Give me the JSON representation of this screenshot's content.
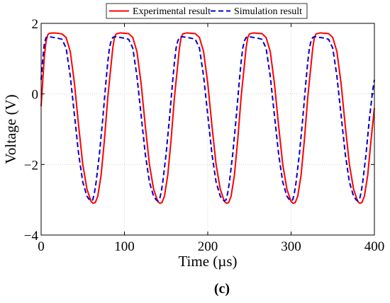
{
  "chart_data": {
    "type": "line",
    "xlabel": "Time (µs)",
    "ylabel": "Voltage (V)",
    "xlim": [
      0,
      400
    ],
    "ylim": [
      -4,
      2
    ],
    "xticks": [
      0,
      100,
      200,
      300,
      400
    ],
    "yticks": [
      -4,
      -2,
      0,
      2
    ],
    "grid": true,
    "legend_position": "top",
    "caption": "(c)",
    "series": [
      {
        "name": "Experimental result",
        "color": "#ff0000",
        "style": "solid",
        "x": [
          0,
          2,
          4,
          6,
          8,
          10,
          15,
          20,
          25,
          30,
          35,
          40,
          45,
          50,
          55,
          60,
          62.5,
          65,
          68,
          72,
          76,
          80,
          83,
          86,
          88,
          90,
          95,
          100,
          105,
          110,
          115,
          120,
          125,
          130,
          135,
          140,
          142.5,
          145,
          148,
          152,
          156,
          160,
          163,
          166,
          168,
          170,
          175,
          180,
          185,
          190,
          195,
          200,
          205,
          210,
          215,
          220,
          222.5,
          225,
          228,
          232,
          236,
          240,
          243,
          246,
          248,
          250,
          255,
          260,
          265,
          270,
          275,
          280,
          285,
          290,
          295,
          300,
          302.5,
          305,
          308,
          312,
          316,
          320,
          323,
          326,
          328,
          330,
          335,
          340,
          345,
          350,
          355,
          360,
          365,
          370,
          375,
          380,
          382.5,
          385,
          388,
          392,
          396,
          400
        ],
        "y": [
          -0.35,
          0.4,
          1.1,
          1.5,
          1.68,
          1.72,
          1.73,
          1.72,
          1.7,
          1.6,
          1.2,
          0.3,
          -0.9,
          -2.0,
          -2.7,
          -3.05,
          -3.1,
          -3.08,
          -2.9,
          -2.3,
          -1.3,
          -0.1,
          0.6,
          1.3,
          1.6,
          1.7,
          1.73,
          1.72,
          1.71,
          1.6,
          1.2,
          0.3,
          -0.9,
          -2.0,
          -2.7,
          -3.05,
          -3.1,
          -3.08,
          -2.9,
          -2.3,
          -1.3,
          -0.1,
          0.6,
          1.3,
          1.6,
          1.7,
          1.73,
          1.72,
          1.71,
          1.6,
          1.2,
          0.3,
          -0.9,
          -2.0,
          -2.7,
          -3.05,
          -3.1,
          -3.08,
          -2.9,
          -2.3,
          -1.3,
          -0.1,
          0.6,
          1.3,
          1.6,
          1.7,
          1.73,
          1.72,
          1.71,
          1.6,
          1.2,
          0.3,
          -0.9,
          -2.0,
          -2.7,
          -3.05,
          -3.1,
          -3.08,
          -2.9,
          -2.3,
          -1.3,
          -0.1,
          0.6,
          1.3,
          1.6,
          1.7,
          1.73,
          1.72,
          1.71,
          1.6,
          1.2,
          0.3,
          -0.9,
          -2.0,
          -2.7,
          -3.05,
          -3.1,
          -3.08,
          -2.9,
          -2.3,
          -1.3,
          -0.4
        ]
      },
      {
        "name": "Simulation result",
        "color": "#0000cc",
        "style": "dashed",
        "x": [
          0,
          2,
          4,
          6,
          8,
          10,
          15,
          20,
          25,
          30,
          35,
          40,
          45,
          50,
          55,
          58,
          60,
          62,
          64,
          66,
          70,
          74,
          78,
          80,
          82,
          84,
          86,
          88,
          90,
          95,
          100,
          105,
          110,
          115,
          120,
          125,
          130,
          135,
          138,
          140,
          142,
          144,
          146,
          150,
          154,
          158,
          160,
          162,
          164,
          166,
          168,
          170,
          175,
          180,
          185,
          190,
          195,
          200,
          205,
          210,
          215,
          218,
          220,
          222,
          224,
          226,
          230,
          234,
          238,
          240,
          242,
          244,
          246,
          248,
          250,
          255,
          260,
          265,
          270,
          275,
          280,
          285,
          290,
          295,
          298,
          300,
          302,
          304,
          306,
          310,
          314,
          318,
          320,
          322,
          324,
          326,
          328,
          330,
          335,
          340,
          345,
          350,
          355,
          360,
          365,
          370,
          375,
          378,
          380,
          382,
          384,
          386,
          390,
          394,
          398,
          400
        ],
        "y": [
          0.4,
          1.0,
          1.45,
          1.6,
          1.62,
          1.62,
          1.6,
          1.58,
          1.55,
          1.3,
          0.5,
          -0.6,
          -1.7,
          -2.5,
          -2.9,
          -3.0,
          -3.03,
          -3.0,
          -2.8,
          -2.5,
          -1.7,
          -0.7,
          0.4,
          0.9,
          1.3,
          1.5,
          1.6,
          1.62,
          1.62,
          1.6,
          1.58,
          1.55,
          1.3,
          0.5,
          -0.6,
          -1.7,
          -2.5,
          -2.9,
          -3.0,
          -3.03,
          -3.0,
          -2.8,
          -2.5,
          -1.7,
          -0.7,
          0.4,
          0.9,
          1.3,
          1.5,
          1.6,
          1.62,
          1.62,
          1.6,
          1.58,
          1.55,
          1.3,
          0.5,
          -0.6,
          -1.7,
          -2.5,
          -2.9,
          -3.0,
          -3.03,
          -3.0,
          -2.8,
          -2.5,
          -1.7,
          -0.7,
          0.4,
          0.9,
          1.3,
          1.5,
          1.6,
          1.62,
          1.62,
          1.6,
          1.58,
          1.55,
          1.3,
          0.5,
          -0.6,
          -1.7,
          -2.5,
          -2.9,
          -3.0,
          -3.03,
          -3.0,
          -2.8,
          -2.5,
          -1.7,
          -0.7,
          0.4,
          0.9,
          1.3,
          1.5,
          1.6,
          1.62,
          1.62,
          1.6,
          1.58,
          1.55,
          1.3,
          0.5,
          -0.6,
          -1.7,
          -2.5,
          -2.9,
          -3.0,
          -3.03,
          -3.0,
          -2.8,
          -2.5,
          -1.7,
          -0.7,
          0.1,
          0.4
        ]
      }
    ]
  }
}
